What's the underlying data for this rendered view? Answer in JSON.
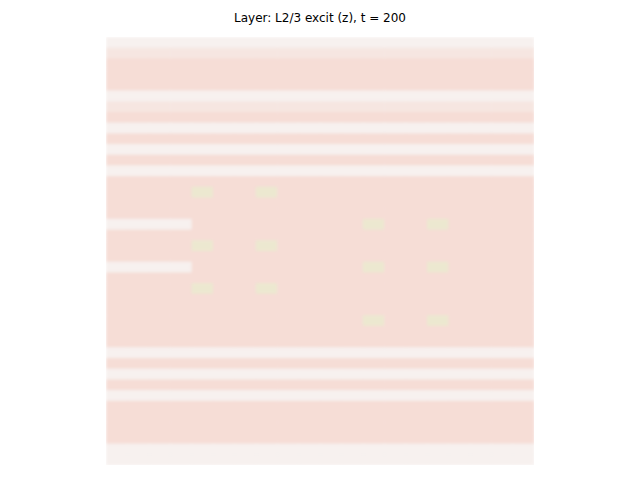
{
  "chart_data": {
    "type": "heatmap",
    "title": "Layer: L2/3 excit (z), t = 200",
    "tick_labels": false,
    "zlim": [
      -1,
      1
    ],
    "cells": [
      [
        0.02,
        0.02,
        0.02,
        0.02,
        0.02,
        0.02,
        0.02,
        0.02,
        0.02,
        0.02,
        0.02,
        0.02,
        0.02,
        0.02,
        0.02,
        0.02,
        0.02,
        0.02,
        0.02,
        0.02
      ],
      [
        0.12,
        0.12,
        0.12,
        0.12,
        0.12,
        0.12,
        0.12,
        0.12,
        0.12,
        0.12,
        0.12,
        0.12,
        0.12,
        0.12,
        0.12,
        0.12,
        0.12,
        0.12,
        0.12,
        0.12
      ],
      [
        0.2,
        0.2,
        0.2,
        0.2,
        0.2,
        0.2,
        0.2,
        0.2,
        0.2,
        0.2,
        0.2,
        0.2,
        0.2,
        0.2,
        0.2,
        0.2,
        0.2,
        0.2,
        0.2,
        0.2
      ],
      [
        0.2,
        0.2,
        0.2,
        0.2,
        0.2,
        0.2,
        0.2,
        0.2,
        0.2,
        0.2,
        0.2,
        0.2,
        0.2,
        0.2,
        0.2,
        0.2,
        0.2,
        0.2,
        0.2,
        0.2
      ],
      [
        0.2,
        0.2,
        0.2,
        0.2,
        0.2,
        0.2,
        0.2,
        0.2,
        0.2,
        0.2,
        0.2,
        0.2,
        0.2,
        0.2,
        0.2,
        0.2,
        0.2,
        0.2,
        0.2,
        0.2
      ],
      [
        0.02,
        0.02,
        0.02,
        0.02,
        0.02,
        0.02,
        0.02,
        0.02,
        0.02,
        0.02,
        0.02,
        0.02,
        0.02,
        0.02,
        0.02,
        0.02,
        0.02,
        0.02,
        0.02,
        0.02
      ],
      [
        0.12,
        0.12,
        0.12,
        0.12,
        0.12,
        0.12,
        0.12,
        0.12,
        0.12,
        0.12,
        0.12,
        0.12,
        0.12,
        0.12,
        0.12,
        0.12,
        0.12,
        0.12,
        0.12,
        0.12
      ],
      [
        0.2,
        0.2,
        0.2,
        0.2,
        0.2,
        0.2,
        0.2,
        0.2,
        0.2,
        0.2,
        0.2,
        0.2,
        0.2,
        0.2,
        0.2,
        0.2,
        0.2,
        0.2,
        0.2,
        0.2
      ],
      [
        0.02,
        0.02,
        0.02,
        0.02,
        0.02,
        0.02,
        0.02,
        0.02,
        0.02,
        0.02,
        0.02,
        0.02,
        0.02,
        0.02,
        0.02,
        0.02,
        0.02,
        0.02,
        0.02,
        0.02
      ],
      [
        0.2,
        0.2,
        0.2,
        0.2,
        0.2,
        0.2,
        0.2,
        0.2,
        0.2,
        0.2,
        0.2,
        0.2,
        0.2,
        0.2,
        0.2,
        0.2,
        0.2,
        0.2,
        0.2,
        0.2
      ],
      [
        0.02,
        0.02,
        0.02,
        0.02,
        0.02,
        0.02,
        0.02,
        0.02,
        0.02,
        0.02,
        0.02,
        0.02,
        0.02,
        0.02,
        0.02,
        0.02,
        0.02,
        0.02,
        0.02,
        0.02
      ],
      [
        0.2,
        0.2,
        0.2,
        0.2,
        0.2,
        0.2,
        0.2,
        0.2,
        0.2,
        0.2,
        0.2,
        0.2,
        0.2,
        0.2,
        0.2,
        0.2,
        0.2,
        0.2,
        0.2,
        0.2
      ],
      [
        0.02,
        0.02,
        0.02,
        0.02,
        0.02,
        0.02,
        0.02,
        0.02,
        0.02,
        0.02,
        0.02,
        0.02,
        0.02,
        0.02,
        0.02,
        0.02,
        0.02,
        0.02,
        0.02,
        0.02
      ],
      [
        0.2,
        0.2,
        0.2,
        0.2,
        0.2,
        0.2,
        0.2,
        0.2,
        0.2,
        0.2,
        0.2,
        0.2,
        0.2,
        0.2,
        0.2,
        0.2,
        0.2,
        0.2,
        0.2,
        0.2
      ],
      [
        0.2,
        0.2,
        0.2,
        0.2,
        -0.15,
        0.2,
        0.2,
        -0.15,
        0.2,
        0.2,
        0.2,
        0.2,
        0.2,
        0.2,
        0.2,
        0.2,
        0.2,
        0.2,
        0.2,
        0.2
      ],
      [
        0.2,
        0.2,
        0.2,
        0.2,
        0.2,
        0.2,
        0.2,
        0.2,
        0.2,
        0.2,
        0.2,
        0.2,
        0.2,
        0.2,
        0.2,
        0.2,
        0.2,
        0.2,
        0.2,
        0.2
      ],
      [
        0.2,
        0.2,
        0.2,
        0.2,
        0.2,
        0.2,
        0.2,
        0.2,
        0.2,
        0.2,
        0.2,
        0.2,
        0.2,
        0.2,
        0.2,
        0.2,
        0.2,
        0.2,
        0.2,
        0.2
      ],
      [
        0.02,
        0.02,
        0.02,
        0.02,
        0.2,
        0.2,
        0.2,
        0.2,
        0.2,
        0.2,
        0.2,
        0.2,
        -0.15,
        0.2,
        0.2,
        -0.15,
        0.2,
        0.2,
        0.2,
        0.2
      ],
      [
        0.2,
        0.2,
        0.2,
        0.2,
        0.2,
        0.2,
        0.2,
        0.2,
        0.2,
        0.2,
        0.2,
        0.2,
        0.2,
        0.2,
        0.2,
        0.2,
        0.2,
        0.2,
        0.2,
        0.2
      ],
      [
        0.2,
        0.2,
        0.2,
        0.2,
        -0.15,
        0.2,
        0.2,
        -0.15,
        0.2,
        0.2,
        0.2,
        0.2,
        0.2,
        0.2,
        0.2,
        0.2,
        0.2,
        0.2,
        0.2,
        0.2
      ],
      [
        0.2,
        0.2,
        0.2,
        0.2,
        0.2,
        0.2,
        0.2,
        0.2,
        0.2,
        0.2,
        0.2,
        0.2,
        0.2,
        0.2,
        0.2,
        0.2,
        0.2,
        0.2,
        0.2,
        0.2
      ],
      [
        0.02,
        0.02,
        0.02,
        0.02,
        0.2,
        0.2,
        0.2,
        0.2,
        0.2,
        0.2,
        0.2,
        0.2,
        -0.15,
        0.2,
        0.2,
        -0.15,
        0.2,
        0.2,
        0.2,
        0.2
      ],
      [
        0.2,
        0.2,
        0.2,
        0.2,
        0.2,
        0.2,
        0.2,
        0.2,
        0.2,
        0.2,
        0.2,
        0.2,
        0.2,
        0.2,
        0.2,
        0.2,
        0.2,
        0.2,
        0.2,
        0.2
      ],
      [
        0.2,
        0.2,
        0.2,
        0.2,
        -0.15,
        0.2,
        0.2,
        -0.15,
        0.2,
        0.2,
        0.2,
        0.2,
        0.2,
        0.2,
        0.2,
        0.2,
        0.2,
        0.2,
        0.2,
        0.2
      ],
      [
        0.2,
        0.2,
        0.2,
        0.2,
        0.2,
        0.2,
        0.2,
        0.2,
        0.2,
        0.2,
        0.2,
        0.2,
        0.2,
        0.2,
        0.2,
        0.2,
        0.2,
        0.2,
        0.2,
        0.2
      ],
      [
        0.2,
        0.2,
        0.2,
        0.2,
        0.2,
        0.2,
        0.2,
        0.2,
        0.2,
        0.2,
        0.2,
        0.2,
        0.2,
        0.2,
        0.2,
        0.2,
        0.2,
        0.2,
        0.2,
        0.2
      ],
      [
        0.2,
        0.2,
        0.2,
        0.2,
        0.2,
        0.2,
        0.2,
        0.2,
        0.2,
        0.2,
        0.2,
        0.2,
        -0.15,
        0.2,
        0.2,
        -0.15,
        0.2,
        0.2,
        0.2,
        0.2
      ],
      [
        0.2,
        0.2,
        0.2,
        0.2,
        0.2,
        0.2,
        0.2,
        0.2,
        0.2,
        0.2,
        0.2,
        0.2,
        0.2,
        0.2,
        0.2,
        0.2,
        0.2,
        0.2,
        0.2,
        0.2
      ],
      [
        0.2,
        0.2,
        0.2,
        0.2,
        0.2,
        0.2,
        0.2,
        0.2,
        0.2,
        0.2,
        0.2,
        0.2,
        0.2,
        0.2,
        0.2,
        0.2,
        0.2,
        0.2,
        0.2,
        0.2
      ],
      [
        0.02,
        0.02,
        0.02,
        0.02,
        0.02,
        0.02,
        0.02,
        0.02,
        0.02,
        0.02,
        0.02,
        0.02,
        0.02,
        0.02,
        0.02,
        0.02,
        0.02,
        0.02,
        0.02,
        0.02
      ],
      [
        0.2,
        0.2,
        0.2,
        0.2,
        0.2,
        0.2,
        0.2,
        0.2,
        0.2,
        0.2,
        0.2,
        0.2,
        0.2,
        0.2,
        0.2,
        0.2,
        0.2,
        0.2,
        0.2,
        0.2
      ],
      [
        0.02,
        0.02,
        0.02,
        0.02,
        0.02,
        0.02,
        0.02,
        0.02,
        0.02,
        0.02,
        0.02,
        0.02,
        0.02,
        0.02,
        0.02,
        0.02,
        0.02,
        0.02,
        0.02,
        0.02
      ],
      [
        0.2,
        0.2,
        0.2,
        0.2,
        0.2,
        0.2,
        0.2,
        0.2,
        0.2,
        0.2,
        0.2,
        0.2,
        0.2,
        0.2,
        0.2,
        0.2,
        0.2,
        0.2,
        0.2,
        0.2
      ],
      [
        0.02,
        0.02,
        0.02,
        0.02,
        0.02,
        0.02,
        0.02,
        0.02,
        0.02,
        0.02,
        0.02,
        0.02,
        0.02,
        0.02,
        0.02,
        0.02,
        0.02,
        0.02,
        0.02,
        0.02
      ],
      [
        0.2,
        0.2,
        0.2,
        0.2,
        0.2,
        0.2,
        0.2,
        0.2,
        0.2,
        0.2,
        0.2,
        0.2,
        0.2,
        0.2,
        0.2,
        0.2,
        0.2,
        0.2,
        0.2,
        0.2
      ],
      [
        0.2,
        0.2,
        0.2,
        0.2,
        0.2,
        0.2,
        0.2,
        0.2,
        0.2,
        0.2,
        0.2,
        0.2,
        0.2,
        0.2,
        0.2,
        0.2,
        0.2,
        0.2,
        0.2,
        0.2
      ],
      [
        0.2,
        0.2,
        0.2,
        0.2,
        0.2,
        0.2,
        0.2,
        0.2,
        0.2,
        0.2,
        0.2,
        0.2,
        0.2,
        0.2,
        0.2,
        0.2,
        0.2,
        0.2,
        0.2,
        0.2
      ],
      [
        0.2,
        0.2,
        0.2,
        0.2,
        0.2,
        0.2,
        0.2,
        0.2,
        0.2,
        0.2,
        0.2,
        0.2,
        0.2,
        0.2,
        0.2,
        0.2,
        0.2,
        0.2,
        0.2,
        0.2
      ],
      [
        0.02,
        0.02,
        0.02,
        0.02,
        0.02,
        0.02,
        0.02,
        0.02,
        0.02,
        0.02,
        0.02,
        0.02,
        0.02,
        0.02,
        0.02,
        0.02,
        0.02,
        0.02,
        0.02,
        0.02
      ],
      [
        0.02,
        0.02,
        0.02,
        0.02,
        0.02,
        0.02,
        0.02,
        0.02,
        0.02,
        0.02,
        0.02,
        0.02,
        0.02,
        0.02,
        0.02,
        0.02,
        0.02,
        0.02,
        0.02,
        0.02
      ]
    ]
  }
}
